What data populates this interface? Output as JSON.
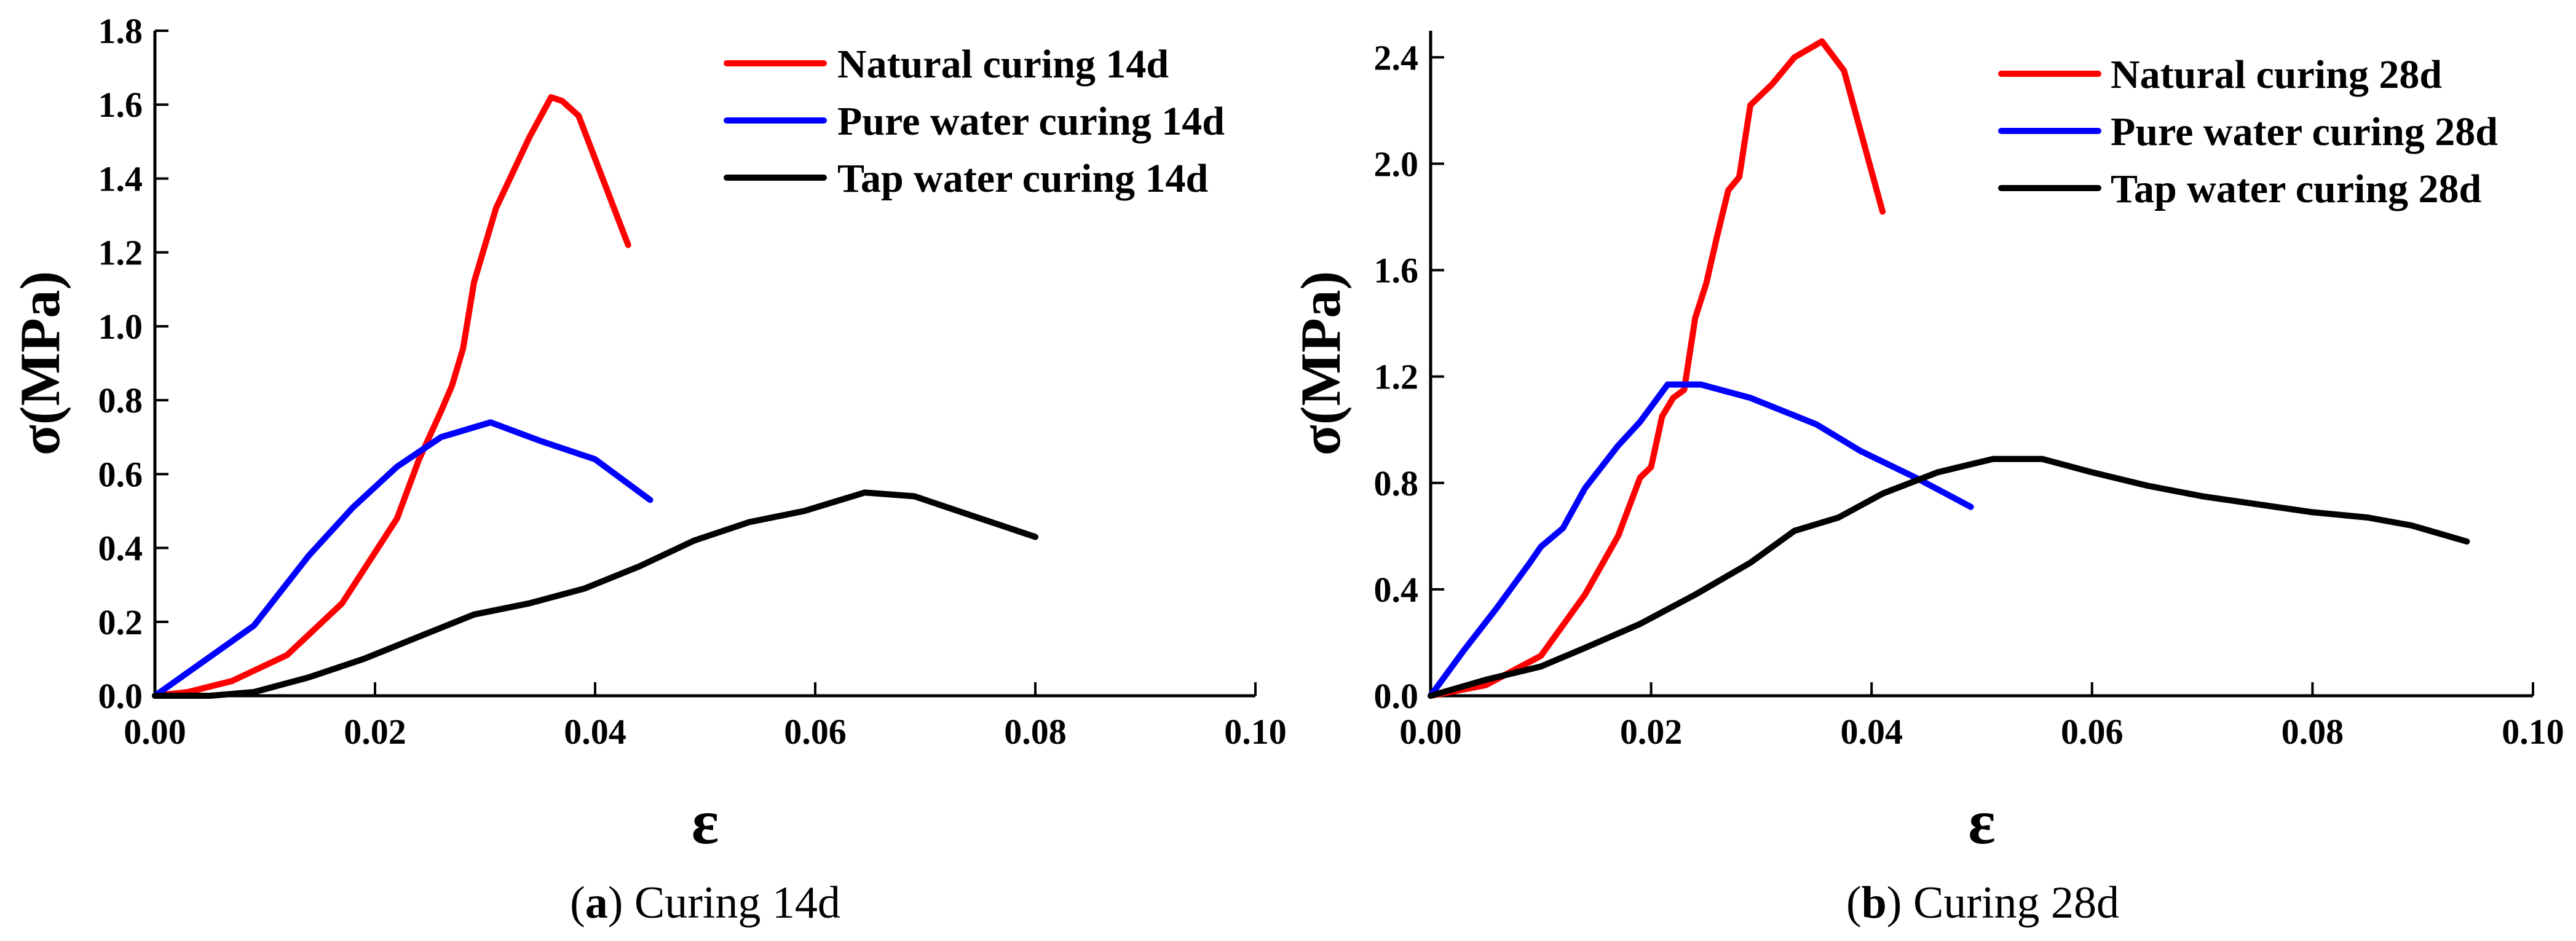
{
  "chart_data": [
    {
      "type": "line",
      "panel": "a",
      "caption_letter": "a",
      "caption_text": "Curing 14d",
      "xlabel": "ε",
      "ylabel": "σ(MPa)",
      "xlim": [
        0,
        0.1
      ],
      "ylim": [
        0,
        1.8
      ],
      "xticks": [
        0,
        0.02,
        0.04,
        0.06,
        0.08,
        0.1
      ],
      "xtick_labels": [
        "0.00",
        "0.02",
        "0.04",
        "0.06",
        "0.08",
        "0.10"
      ],
      "yticks": [
        0,
        0.2,
        0.4,
        0.6,
        0.8,
        1.0,
        1.2,
        1.4,
        1.6,
        1.8
      ],
      "ytick_labels": [
        "0.0",
        "0.2",
        "0.4",
        "0.6",
        "0.8",
        "1.0",
        "1.2",
        "1.4",
        "1.6",
        "1.8"
      ],
      "legend_position": "top-right",
      "series": [
        {
          "name": "Natural curing 14d",
          "color": "#ff0000",
          "x": [
            0,
            0.003,
            0.007,
            0.012,
            0.017,
            0.022,
            0.024,
            0.026,
            0.027,
            0.028,
            0.029,
            0.031,
            0.034,
            0.036,
            0.037,
            0.0385,
            0.043
          ],
          "y": [
            0,
            0.01,
            0.04,
            0.11,
            0.25,
            0.48,
            0.64,
            0.77,
            0.84,
            0.94,
            1.12,
            1.32,
            1.51,
            1.62,
            1.61,
            1.57,
            1.22
          ]
        },
        {
          "name": "Pure water curing 14d",
          "color": "#0000ff",
          "x": [
            0,
            0.009,
            0.014,
            0.018,
            0.022,
            0.026,
            0.0305,
            0.035,
            0.04,
            0.045
          ],
          "y": [
            0,
            0.19,
            0.38,
            0.51,
            0.62,
            0.7,
            0.74,
            0.69,
            0.64,
            0.53
          ]
        },
        {
          "name": "Tap water curing 14d",
          "color": "#000000",
          "x": [
            0,
            0.005,
            0.009,
            0.014,
            0.019,
            0.024,
            0.029,
            0.034,
            0.039,
            0.044,
            0.049,
            0.054,
            0.059,
            0.0645,
            0.069,
            0.074,
            0.08
          ],
          "y": [
            0,
            0.0,
            0.01,
            0.05,
            0.1,
            0.16,
            0.22,
            0.25,
            0.29,
            0.35,
            0.42,
            0.47,
            0.5,
            0.55,
            0.54,
            0.49,
            0.43
          ]
        }
      ]
    },
    {
      "type": "line",
      "panel": "b",
      "caption_letter": "b",
      "caption_text": "Curing 28d",
      "xlabel": "ε",
      "ylabel": "σ(MPa)",
      "xlim": [
        0,
        0.1
      ],
      "ylim": [
        0,
        2.5
      ],
      "xticks": [
        0,
        0.02,
        0.04,
        0.06,
        0.08,
        0.1
      ],
      "xtick_labels": [
        "0.00",
        "0.02",
        "0.04",
        "0.06",
        "0.08",
        "0.10"
      ],
      "yticks": [
        0,
        0.4,
        0.8,
        1.2,
        1.6,
        2.0,
        2.4
      ],
      "ytick_labels": [
        "0.0",
        "0.4",
        "0.8",
        "1.2",
        "1.6",
        "2.0",
        "2.4"
      ],
      "legend_position": "top-right",
      "series": [
        {
          "name": "Natural curing 28d",
          "color": "#ff0000",
          "x": [
            0,
            0.005,
            0.01,
            0.014,
            0.017,
            0.019,
            0.02,
            0.021,
            0.022,
            0.023,
            0.024,
            0.025,
            0.026,
            0.027,
            0.028,
            0.029,
            0.031,
            0.033,
            0.0355,
            0.0375,
            0.041
          ],
          "y": [
            0,
            0.04,
            0.15,
            0.38,
            0.6,
            0.82,
            0.86,
            1.05,
            1.12,
            1.15,
            1.42,
            1.55,
            1.73,
            1.9,
            1.95,
            2.22,
            2.3,
            2.4,
            2.46,
            2.35,
            1.82
          ]
        },
        {
          "name": "Pure water curing 28d",
          "color": "#0000ff",
          "x": [
            0,
            0.003,
            0.006,
            0.009,
            0.01,
            0.012,
            0.014,
            0.017,
            0.019,
            0.0215,
            0.0245,
            0.029,
            0.032,
            0.035,
            0.039,
            0.044,
            0.049
          ],
          "y": [
            0,
            0.17,
            0.33,
            0.5,
            0.56,
            0.63,
            0.78,
            0.94,
            1.03,
            1.17,
            1.17,
            1.12,
            1.07,
            1.02,
            0.92,
            0.82,
            0.71
          ]
        },
        {
          "name": "Tap water curing 28d",
          "color": "#000000",
          "x": [
            0,
            0.005,
            0.01,
            0.014,
            0.019,
            0.024,
            0.029,
            0.033,
            0.037,
            0.041,
            0.046,
            0.051,
            0.0555,
            0.06,
            0.065,
            0.07,
            0.075,
            0.08,
            0.085,
            0.089,
            0.094
          ],
          "y": [
            0,
            0.06,
            0.11,
            0.18,
            0.27,
            0.38,
            0.5,
            0.62,
            0.67,
            0.76,
            0.84,
            0.89,
            0.89,
            0.84,
            0.79,
            0.75,
            0.72,
            0.69,
            0.67,
            0.64,
            0.58
          ]
        }
      ]
    }
  ]
}
